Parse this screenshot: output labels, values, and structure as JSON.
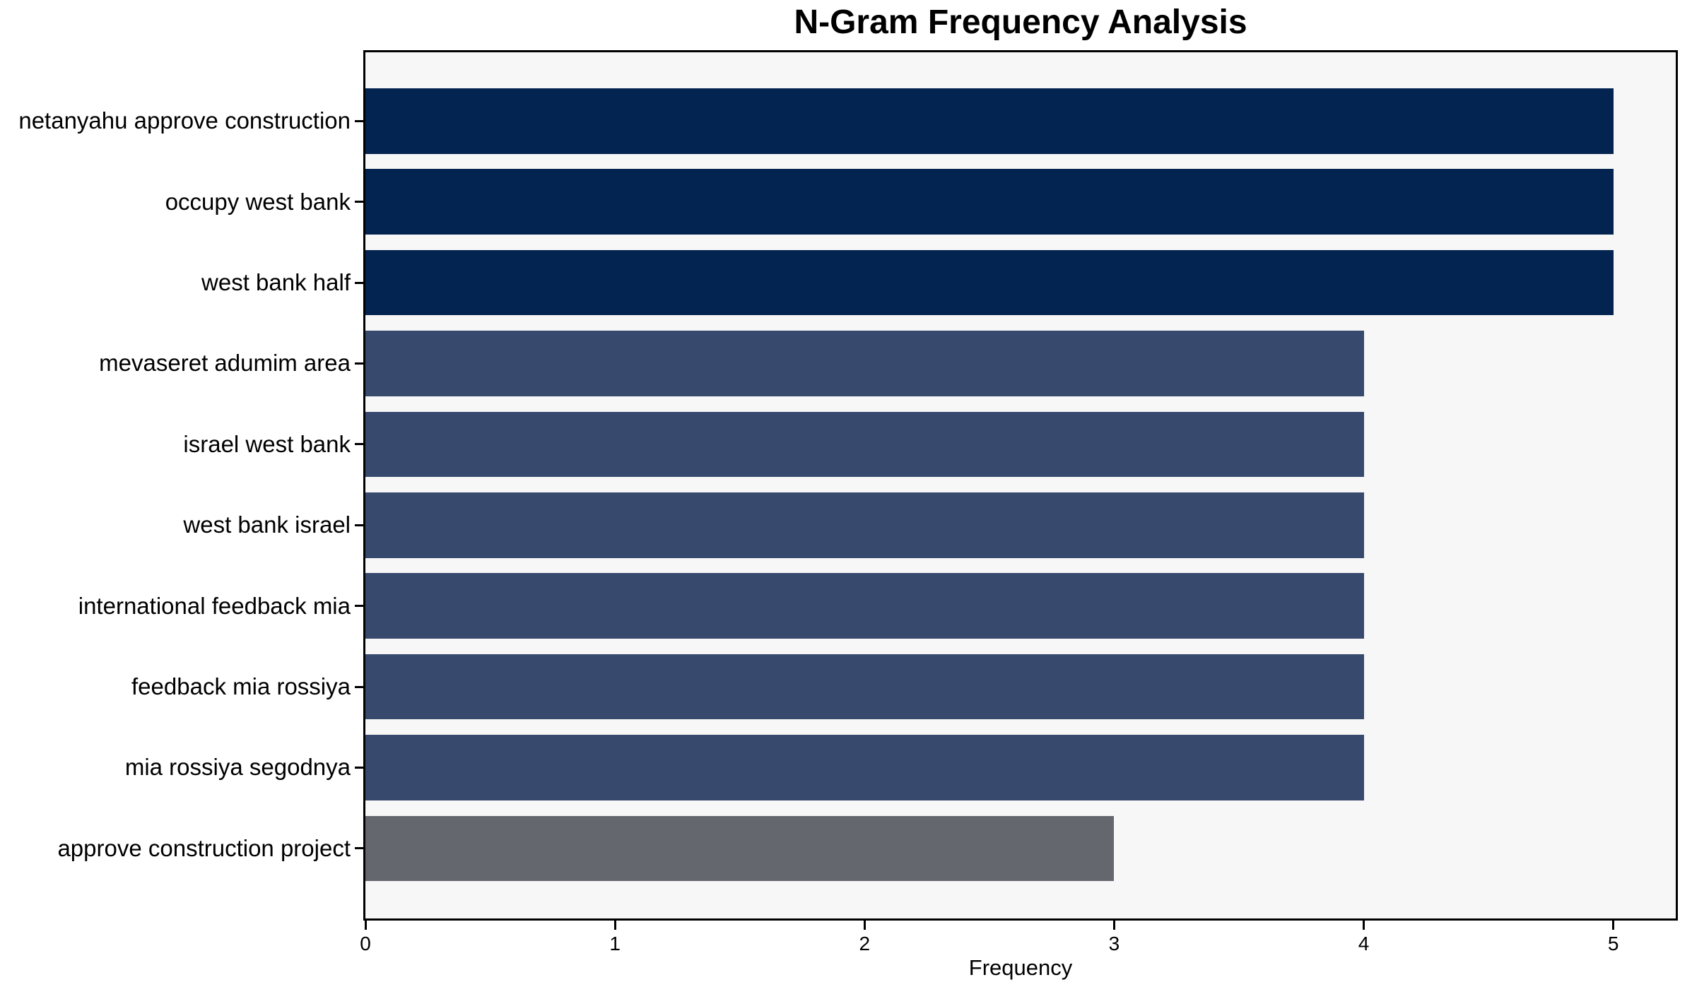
{
  "title": "N-Gram Frequency Analysis",
  "chart_data": {
    "type": "bar",
    "orientation": "horizontal",
    "title": "N-Gram Frequency Analysis",
    "xlabel": "Frequency",
    "ylabel": "",
    "categories": [
      "netanyahu approve construction",
      "occupy west bank",
      "west bank half",
      "mevaseret adumim area",
      "israel west bank",
      "west bank israel",
      "international feedback mia",
      "feedback mia rossiya",
      "mia rossiya segodnya",
      "approve construction project"
    ],
    "values": [
      5,
      5,
      5,
      4,
      4,
      4,
      4,
      4,
      4,
      3
    ],
    "bar_colors": [
      "#032450",
      "#032450",
      "#032450",
      "#374a6e",
      "#374a6e",
      "#374a6e",
      "#374a6e",
      "#374a6e",
      "#374a6e",
      "#65676e"
    ],
    "xticks": [
      0,
      1,
      2,
      3,
      4,
      5
    ],
    "xlim": [
      0,
      5.25
    ],
    "grid": false,
    "legend": null,
    "plot_background": "#f7f7f7",
    "figure_background": "#ffffff",
    "spine_color": "#000000",
    "text_color": "#000000"
  }
}
